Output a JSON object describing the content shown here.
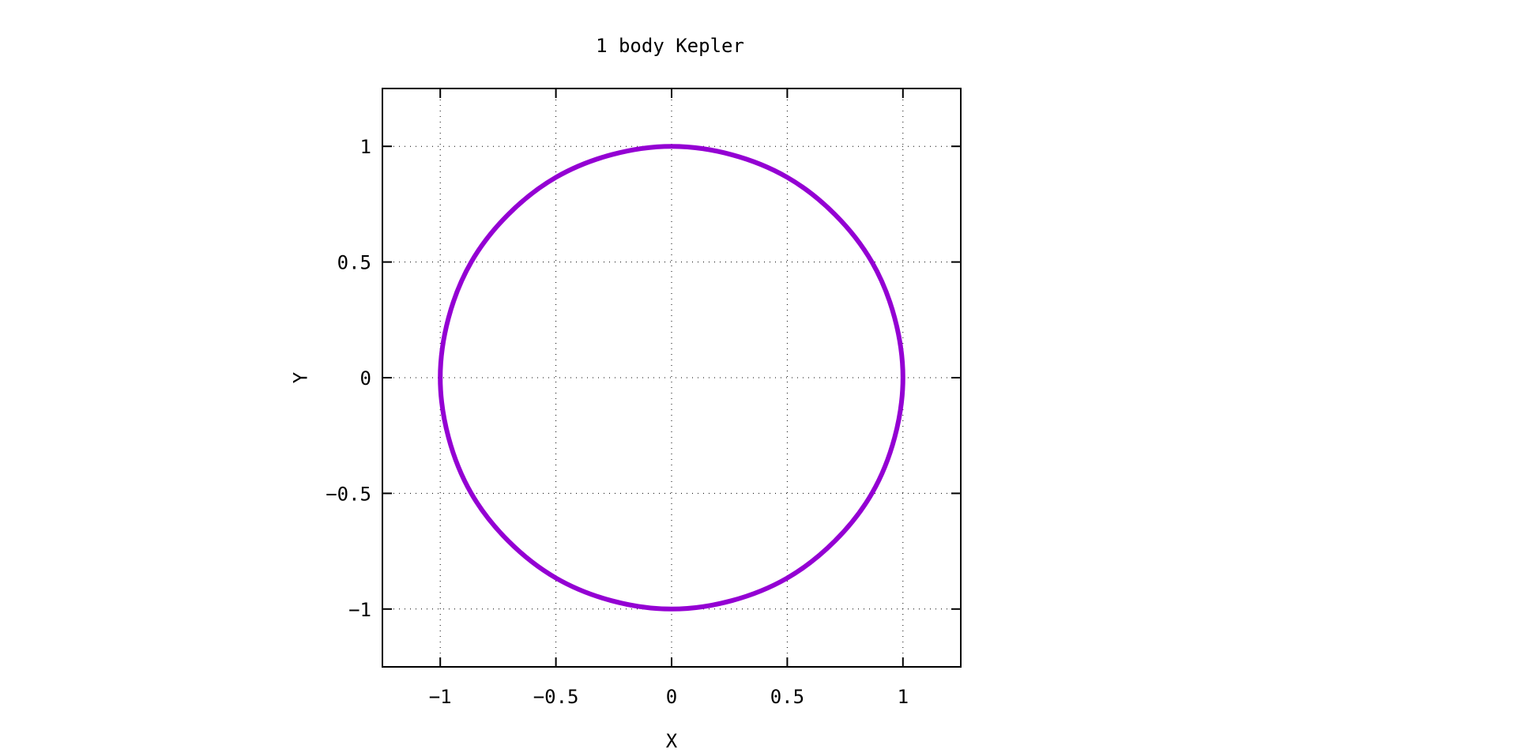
{
  "chart_data": {
    "type": "line",
    "title": "1 body Kepler",
    "xlabel": "X",
    "ylabel": "Y",
    "xlim": [
      -1.25,
      1.25
    ],
    "ylim": [
      -1.25,
      1.25
    ],
    "xticks": [
      -1,
      -0.5,
      0,
      0.5,
      1
    ],
    "yticks": [
      -1,
      -0.5,
      0,
      0.5,
      1
    ],
    "xtick_labels": [
      "−1",
      "−0.5",
      "0",
      "0.5",
      "1"
    ],
    "ytick_labels": [
      "−1",
      "−0.5",
      "0",
      "0.5",
      "1"
    ],
    "grid": true,
    "legend": "none",
    "series": [
      {
        "color": "#9400d3",
        "x": [
          1,
          0.866,
          0.5,
          0,
          -0.5,
          -0.866,
          -1,
          -0.866,
          -0.5,
          0,
          0.5,
          0.866,
          1
        ],
        "y": [
          0,
          0.5,
          0.866,
          1,
          0.866,
          0.5,
          0,
          -0.5,
          -0.866,
          -1,
          -0.866,
          -0.5,
          0
        ]
      }
    ]
  }
}
